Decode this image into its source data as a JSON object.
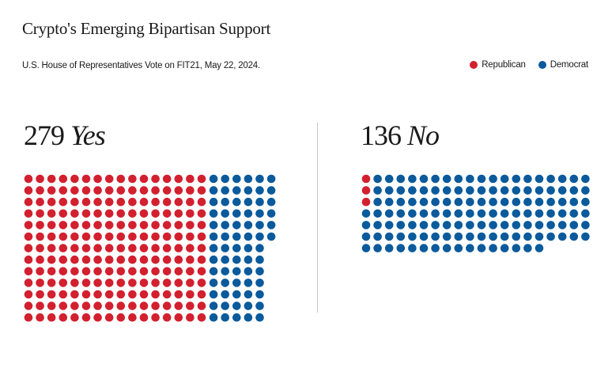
{
  "title": "Crypto's Emerging Bipartisan Support",
  "subtitle": "U.S. House of Representatives Vote on FIT21, May 22, 2024.",
  "legend": {
    "republican": "Republican",
    "democrat": "Democrat"
  },
  "colors": {
    "republican": "#d2202f",
    "democrat": "#0a5a9c"
  },
  "chart_data": {
    "type": "waffle",
    "title": "Crypto's Emerging Bipartisan Support",
    "subtitle": "U.S. House of Representatives Vote on FIT21, May 22, 2024.",
    "legend_position": "top-right",
    "groups": [
      {
        "label_count": "279",
        "label_word": "Yes",
        "total": 279,
        "series": [
          {
            "name": "Republican",
            "value": 208
          },
          {
            "name": "Democrat",
            "value": 71
          }
        ]
      },
      {
        "label_count": "136",
        "label_word": "No",
        "total": 136,
        "series": [
          {
            "name": "Republican",
            "value": 3
          },
          {
            "name": "Democrat",
            "value": 133
          }
        ]
      }
    ]
  }
}
